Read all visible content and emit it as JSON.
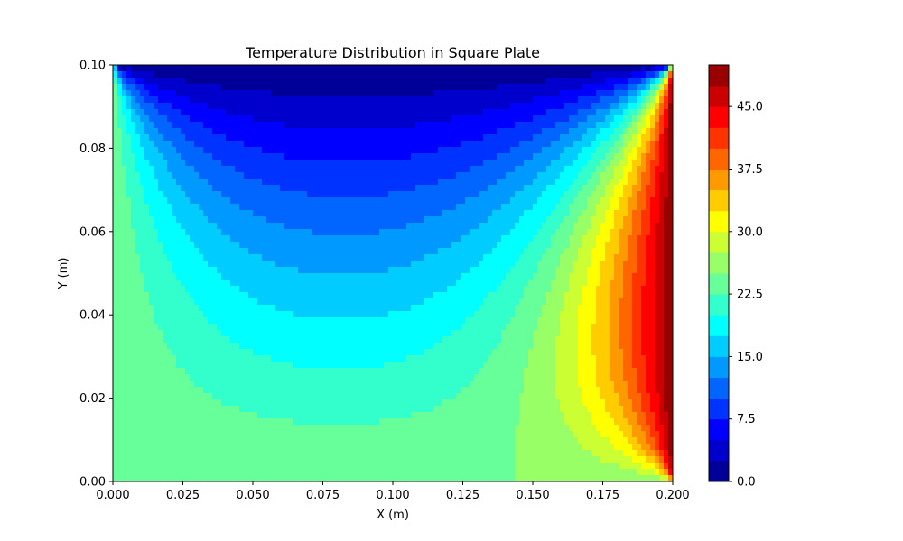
{
  "chart_data": {
    "type": "heatmap",
    "subtype": "filled-contour",
    "title": "Temperature Distribution in Square Plate",
    "xlabel": "X (m)",
    "ylabel": "Y (m)",
    "xlim": [
      0.0,
      0.2
    ],
    "ylim": [
      0.0,
      0.1
    ],
    "x_ticks": [
      "0.000",
      "0.025",
      "0.050",
      "0.075",
      "0.100",
      "0.125",
      "0.150",
      "0.175",
      "0.200"
    ],
    "y_ticks": [
      "0.00",
      "0.02",
      "0.04",
      "0.06",
      "0.08",
      "0.10"
    ],
    "colormap": "jet",
    "colorbar": {
      "range": [
        0,
        50
      ],
      "levels": 20,
      "ticks": [
        "0.0",
        "7.5",
        "15.0",
        "22.5",
        "30.0",
        "37.5",
        "45.0"
      ]
    },
    "boundary_conditions": {
      "top_edge_y": 0.1,
      "top_value": 0,
      "right_edge_x": 0.2,
      "right_value": 50,
      "bottom_value": 25,
      "left_value": 25
    },
    "grid": false
  }
}
